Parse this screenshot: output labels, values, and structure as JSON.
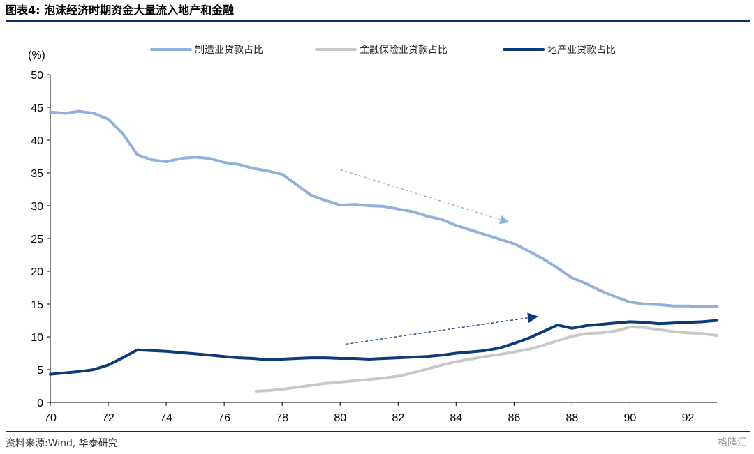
{
  "header": {
    "title": "图表4:  泡沫经济时期资金大量流入地产和金融"
  },
  "footer": {
    "source": "资料来源:Wind, 华泰研究",
    "watermark": "格隆汇"
  },
  "chart_data": {
    "type": "line",
    "title": "图表4:  泡沫经济时期资金大量流入地产和金融",
    "ylabel": "(%)",
    "xlabel": "",
    "ylim": [
      0,
      50
    ],
    "xlim": [
      70,
      93
    ],
    "yticks": [
      0,
      5,
      10,
      15,
      20,
      25,
      30,
      35,
      40,
      45,
      50
    ],
    "xticks": [
      70,
      72,
      74,
      76,
      78,
      80,
      82,
      84,
      86,
      88,
      90,
      92
    ],
    "xtick_labels": [
      "70",
      "72",
      "74",
      "76",
      "78",
      "80",
      "82",
      "84",
      "86",
      "88",
      "90",
      "92"
    ],
    "legend_position": "top",
    "grid": false,
    "series": [
      {
        "name": "制造业贷款占比",
        "color": "#8fb1dc",
        "x": [
          70,
          70.5,
          71,
          71.5,
          72,
          72.5,
          73,
          73.5,
          74,
          74.5,
          75,
          75.5,
          76,
          76.5,
          77,
          77.5,
          78,
          78.5,
          79,
          79.5,
          80,
          80.5,
          81,
          81.5,
          82,
          82.5,
          83,
          83.5,
          84,
          84.5,
          85,
          85.5,
          86,
          86.5,
          87,
          87.5,
          88,
          88.5,
          89,
          89.5,
          90,
          90.5,
          91,
          91.5,
          92,
          92.5,
          93
        ],
        "values": [
          44.3,
          44.1,
          44.4,
          44.1,
          43.2,
          41.0,
          37.8,
          37.0,
          36.7,
          37.2,
          37.4,
          37.2,
          36.6,
          36.3,
          35.7,
          35.3,
          34.8,
          33.2,
          31.6,
          30.8,
          30.1,
          30.2,
          30.0,
          29.9,
          29.5,
          29.1,
          28.4,
          27.9,
          27.0,
          26.3,
          25.6,
          24.9,
          24.2,
          23.1,
          21.9,
          20.5,
          19.0,
          18.1,
          17.0,
          16.1,
          15.3,
          15.0,
          14.9,
          14.7,
          14.7,
          14.6,
          14.6
        ]
      },
      {
        "name": "金融保险业贷款占比",
        "color": "#c8c8c8",
        "x": [
          77.1,
          77.5,
          78,
          78.5,
          79,
          79.5,
          80,
          80.5,
          81,
          81.5,
          82,
          82.5,
          83,
          83.5,
          84,
          84.5,
          85,
          85.5,
          86,
          86.5,
          87,
          87.5,
          88,
          88.5,
          89,
          89.5,
          90,
          90.5,
          91,
          91.5,
          92,
          92.5,
          93
        ],
        "values": [
          1.7,
          1.8,
          2.0,
          2.3,
          2.6,
          2.9,
          3.1,
          3.3,
          3.5,
          3.7,
          4.0,
          4.5,
          5.1,
          5.7,
          6.2,
          6.6,
          7.0,
          7.3,
          7.7,
          8.1,
          8.7,
          9.4,
          10.1,
          10.5,
          10.6,
          10.9,
          11.5,
          11.4,
          11.1,
          10.8,
          10.6,
          10.5,
          10.2
        ]
      },
      {
        "name": "地产业贷款占比",
        "color": "#0d3a78",
        "x": [
          70,
          70.5,
          71,
          71.5,
          72,
          72.5,
          73,
          73.5,
          74,
          74.5,
          75,
          75.5,
          76,
          76.5,
          77,
          77.5,
          78,
          78.5,
          79,
          79.5,
          80,
          80.5,
          81,
          81.5,
          82,
          82.5,
          83,
          83.5,
          84,
          84.5,
          85,
          85.5,
          86,
          86.5,
          87,
          87.5,
          88,
          88.5,
          89,
          89.5,
          90,
          90.5,
          91,
          91.5,
          92,
          92.5,
          93
        ],
        "values": [
          4.3,
          4.5,
          4.7,
          5.0,
          5.7,
          6.8,
          8.0,
          7.9,
          7.8,
          7.6,
          7.4,
          7.2,
          7.0,
          6.8,
          6.7,
          6.5,
          6.6,
          6.7,
          6.8,
          6.8,
          6.7,
          6.7,
          6.6,
          6.7,
          6.8,
          6.9,
          7.0,
          7.2,
          7.5,
          7.7,
          7.9,
          8.3,
          9.0,
          9.8,
          10.8,
          11.8,
          11.3,
          11.7,
          11.9,
          12.1,
          12.3,
          12.2,
          12.0,
          12.1,
          12.2,
          12.3,
          12.5
        ]
      }
    ],
    "annotations": [
      {
        "type": "arrow",
        "style": "dashed",
        "color": "#8fb1dc",
        "from": [
          80,
          35.5
        ],
        "to": [
          85.8,
          27.5
        ]
      },
      {
        "type": "arrow",
        "style": "dashed",
        "color": "#0d3a78",
        "from": [
          80.2,
          8.9
        ],
        "to": [
          86.8,
          13.1
        ]
      }
    ]
  }
}
